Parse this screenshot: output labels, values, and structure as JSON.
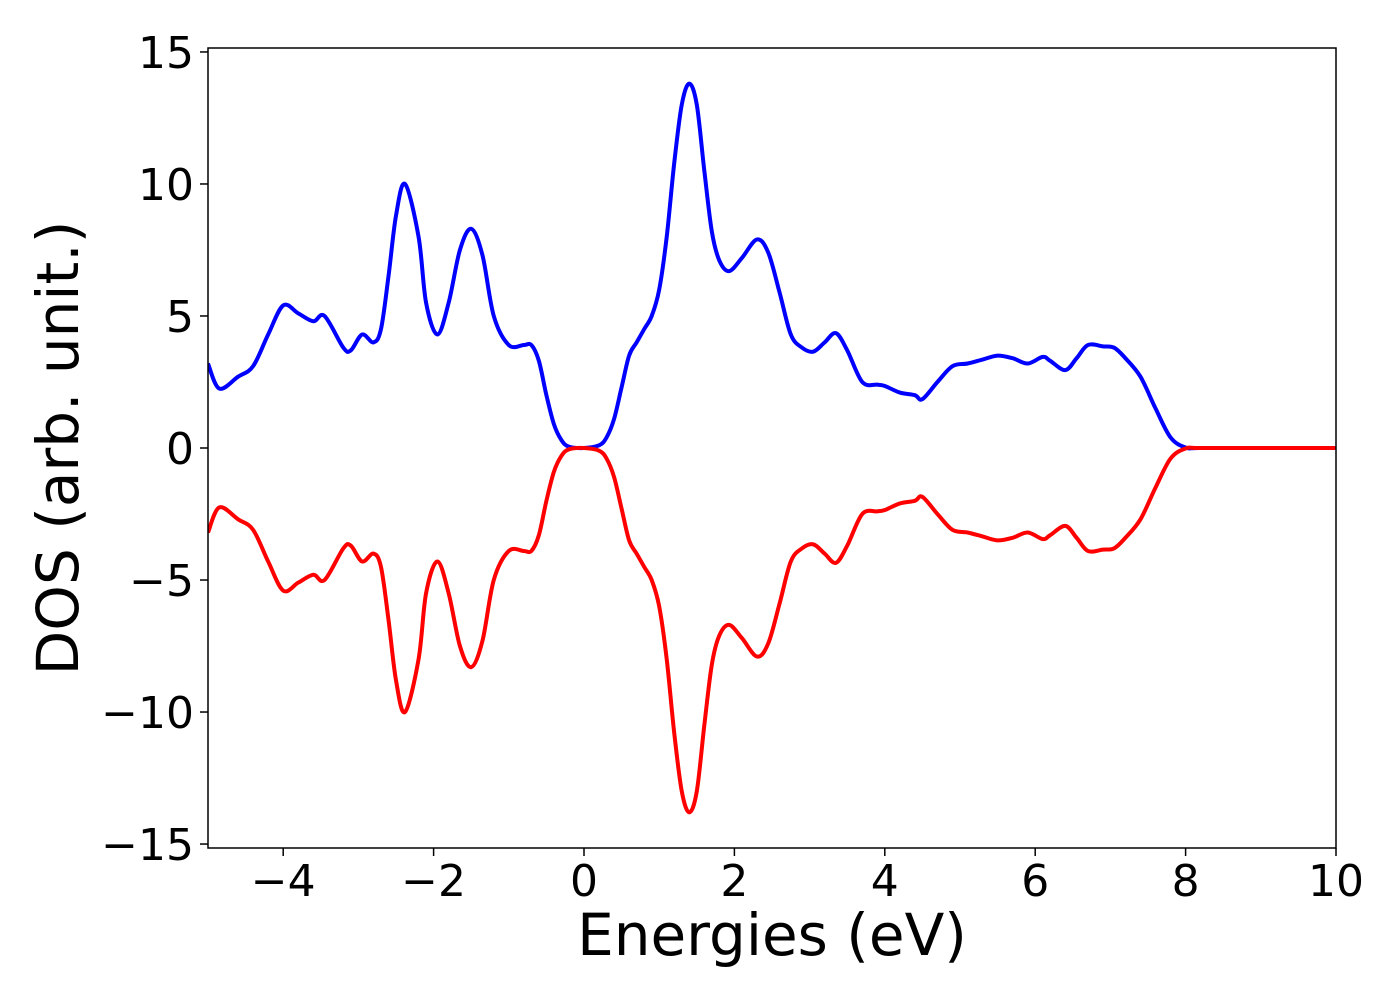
{
  "chart_data": {
    "type": "line",
    "xlabel": "Energies (eV)",
    "ylabel": "DOS (arb. unit.)",
    "xlim": [
      -5,
      10
    ],
    "ylim": [
      -15.15,
      15.15
    ],
    "xticks": [
      {
        "value": -4,
        "label": "−4"
      },
      {
        "value": -2,
        "label": "−2"
      },
      0,
      2,
      4,
      6,
      8,
      10
    ],
    "yticks": [
      {
        "value": -15,
        "label": "−15"
      },
      {
        "value": -10,
        "label": "−10"
      },
      {
        "value": -5,
        "label": "−5"
      },
      0,
      5,
      10,
      15
    ],
    "x": [
      -5,
      -4.85,
      -4.6,
      -4.4,
      -4.2,
      -4.0,
      -3.8,
      -3.6,
      -3.45,
      -3.2,
      -3.1,
      -2.95,
      -2.8,
      -2.7,
      -2.6,
      -2.5,
      -2.38,
      -2.2,
      -2.1,
      -1.95,
      -1.8,
      -1.65,
      -1.5,
      -1.35,
      -1.2,
      -1.0,
      -0.8,
      -0.7,
      -0.6,
      -0.5,
      -0.4,
      -0.3,
      -0.2,
      0,
      0.2,
      0.3,
      0.4,
      0.5,
      0.6,
      0.7,
      0.8,
      0.9,
      1.0,
      1.1,
      1.2,
      1.3,
      1.4,
      1.5,
      1.6,
      1.7,
      1.8,
      1.93,
      2.1,
      2.3,
      2.45,
      2.6,
      2.75,
      2.9,
      3.05,
      3.2,
      3.35,
      3.5,
      3.7,
      3.9,
      4.0,
      4.2,
      4.4,
      4.5,
      4.7,
      4.9,
      5.1,
      5.3,
      5.5,
      5.7,
      5.9,
      6.1,
      6.2,
      6.4,
      6.55,
      6.7,
      6.9,
      7.05,
      7.2,
      7.4,
      7.6,
      7.8,
      8.0,
      8.2,
      9,
      10
    ],
    "series": [
      {
        "color": "#0000ff",
        "values": [
          3.2,
          2.25,
          2.7,
          3.1,
          4.3,
          5.4,
          5.1,
          4.8,
          5.0,
          3.8,
          3.7,
          4.3,
          4.0,
          4.5,
          6.5,
          8.8,
          10.0,
          8.0,
          5.5,
          4.3,
          5.5,
          7.5,
          8.3,
          7.3,
          5.0,
          3.9,
          3.9,
          3.9,
          3.3,
          2.0,
          0.9,
          0.3,
          0.05,
          0,
          0.1,
          0.4,
          1.1,
          2.3,
          3.5,
          4.0,
          4.5,
          5.0,
          6.0,
          8.0,
          10.8,
          13.0,
          13.8,
          13.0,
          10.5,
          8.2,
          7.1,
          6.7,
          7.2,
          7.9,
          7.4,
          5.9,
          4.3,
          3.8,
          3.65,
          4.0,
          4.35,
          3.7,
          2.5,
          2.4,
          2.35,
          2.1,
          2.0,
          1.85,
          2.5,
          3.1,
          3.2,
          3.35,
          3.5,
          3.4,
          3.2,
          3.45,
          3.3,
          2.95,
          3.4,
          3.9,
          3.85,
          3.8,
          3.4,
          2.7,
          1.5,
          0.4,
          0.02,
          0,
          0,
          0
        ]
      },
      {
        "color": "#ff0000",
        "values": [
          -3.2,
          -2.25,
          -2.7,
          -3.1,
          -4.3,
          -5.4,
          -5.1,
          -4.8,
          -5.0,
          -3.8,
          -3.7,
          -4.3,
          -4.0,
          -4.5,
          -6.5,
          -8.8,
          -10.0,
          -8.0,
          -5.5,
          -4.3,
          -5.5,
          -7.5,
          -8.3,
          -7.3,
          -5.0,
          -3.9,
          -3.9,
          -3.9,
          -3.3,
          -2.0,
          -0.9,
          -0.3,
          -0.05,
          0,
          -0.1,
          -0.4,
          -1.1,
          -2.3,
          -3.5,
          -4.0,
          -4.5,
          -5.0,
          -6.0,
          -8.0,
          -10.8,
          -13.0,
          -13.8,
          -13.0,
          -10.5,
          -8.2,
          -7.1,
          -6.7,
          -7.2,
          -7.9,
          -7.4,
          -5.9,
          -4.3,
          -3.8,
          -3.65,
          -4.0,
          -4.35,
          -3.7,
          -2.5,
          -2.4,
          -2.35,
          -2.1,
          -2.0,
          -1.85,
          -2.5,
          -3.1,
          -3.2,
          -3.35,
          -3.5,
          -3.4,
          -3.2,
          -3.45,
          -3.3,
          -2.95,
          -3.4,
          -3.9,
          -3.85,
          -3.8,
          -3.4,
          -2.7,
          -1.5,
          -0.4,
          -0.02,
          0,
          0,
          0
        ]
      }
    ]
  }
}
